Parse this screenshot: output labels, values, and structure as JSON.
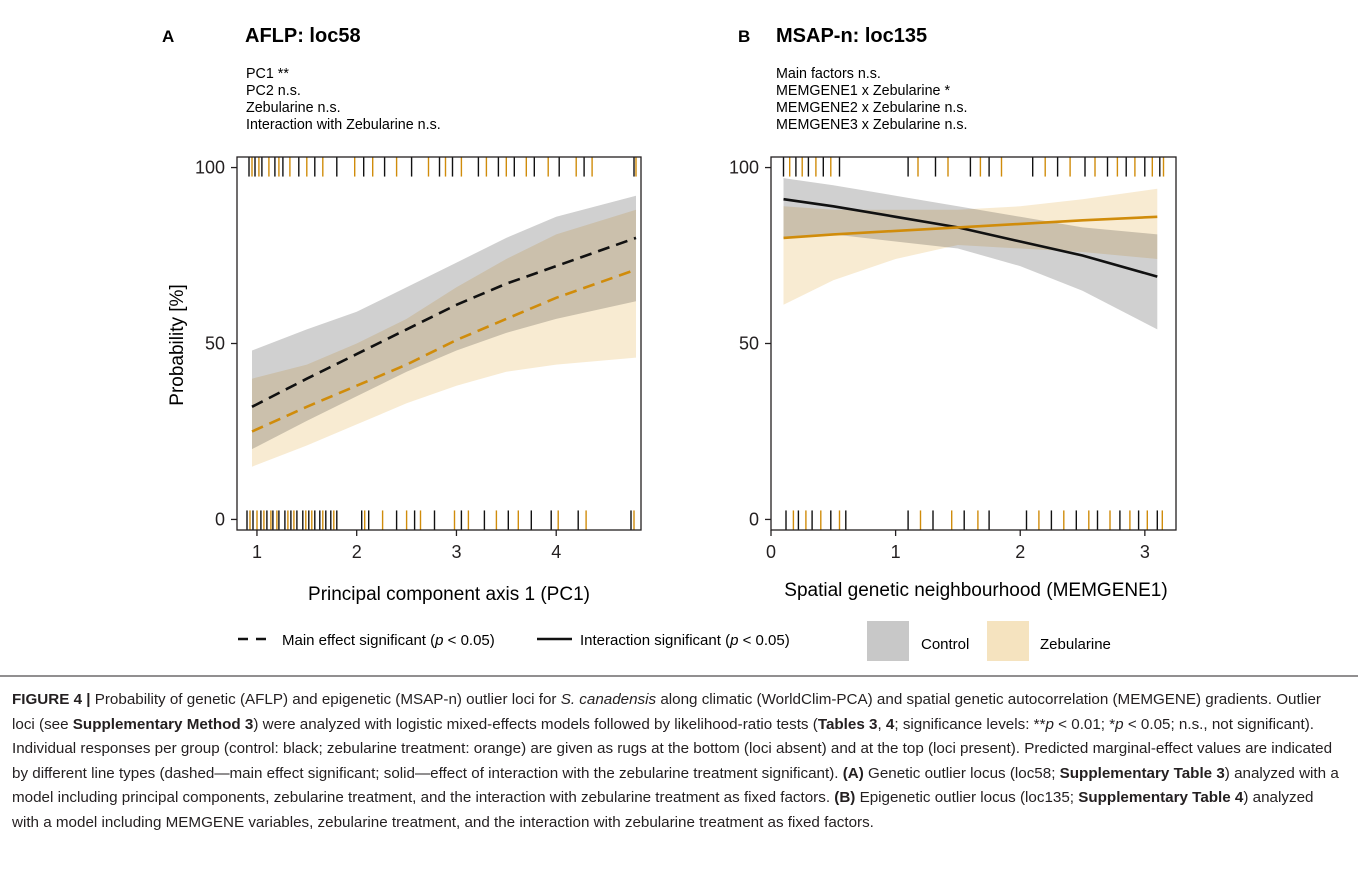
{
  "figure": {
    "caption": {
      "label": "FIGURE 4 |",
      "s1": " Probability of genetic (AFLP) and epigenetic (MSAP-n) outlier loci for ",
      "species": "S. canadensis",
      "s2": " along climatic (WorldClim-PCA) and spatial genetic autocorrelation (MEMGENE) gradients. Outlier loci (see ",
      "b_supp_method": "Supplementary Method 3",
      "s3": ") were analyzed with logistic mixed-effects models followed by likelihood-ratio tests (",
      "b_tables": "Tables 3",
      "s4": ", ",
      "b_four": "4",
      "s5": "; significance levels: **",
      "p1": "p",
      "s6": " < 0.01; *",
      "p2": "p",
      "s7": " < 0.05; n.s., not significant). Individual responses per group (control: black; zebularine treatment: orange) are given as rugs at the bottom (loci absent) and at the top (loci present). Predicted marginal-effect values are indicated by different line types (dashed—main effect significant; solid—effect of interaction with the zebularine treatment significant). ",
      "b_a": "(A)",
      "s8": " Genetic outlier locus (loc58; ",
      "b_supp_t3": "Supplementary Table 3",
      "s9": ") analyzed with a model including principal components, zebularine treatment, and the interaction with zebularine treatment as fixed factors. ",
      "b_b": "(B)",
      "s10": " Epigenetic outlier locus (loc135; ",
      "b_supp_t4": "Supplementary Table 4",
      "s11": ") analyzed with a model including MEMGENE variables, zebularine treatment, and the interaction with zebularine treatment as fixed factors."
    },
    "legend": {
      "dashed_label": "Main effect significant (",
      "dashed_p": "p",
      "dashed_end": " < 0.05)",
      "solid_label": "Interaction significant (",
      "solid_p": "p",
      "solid_end": " < 0.05)",
      "control": "Control",
      "zebularine": "Zebularine"
    }
  },
  "colors": {
    "control_line": "#111111",
    "zebularine_line": "#d08c0b",
    "control_band": "#c8c8c8",
    "zebularine_band": "#f5e3bf",
    "frame": "#231f20"
  },
  "chart_data": [
    {
      "panel": "A",
      "type": "line",
      "title": "AFLP: loc58",
      "annotations": [
        "PC1 **",
        "PC2 n.s.",
        "Zebularine n.s.",
        "Interaction with Zebularine n.s."
      ],
      "xlabel": "Principal component axis 1 (PC1)",
      "ylabel": "Probability [%]",
      "xlim": [
        0.8,
        4.85
      ],
      "ylim": [
        -3,
        103
      ],
      "xticks": [
        1,
        2,
        3,
        4
      ],
      "yticks": [
        0,
        50,
        100
      ],
      "line_style": "dashed",
      "x": [
        0.95,
        1.5,
        2,
        2.5,
        3,
        3.5,
        4,
        4.8
      ],
      "series": [
        {
          "name": "Control",
          "values": [
            32,
            40,
            47,
            54,
            61,
            67,
            72,
            80
          ],
          "lower": [
            20,
            28,
            35,
            42,
            48,
            53,
            57,
            62
          ],
          "upper": [
            48,
            54,
            59,
            66,
            73,
            80,
            86,
            92
          ]
        },
        {
          "name": "Zebularine",
          "values": [
            25,
            32,
            38,
            44,
            51,
            57,
            63,
            71
          ],
          "lower": [
            15,
            21,
            27,
            33,
            38,
            42,
            44,
            46
          ],
          "upper": [
            40,
            44,
            50,
            57,
            66,
            74,
            81,
            88
          ]
        }
      ],
      "rugs": {
        "top": [
          {
            "group": "Control",
            "x": [
              0.92,
              0.98,
              1.05,
              1.18,
              1.26,
              1.42,
              1.58,
              1.8,
              2.07,
              2.28,
              2.55,
              2.83,
              2.96,
              3.22,
              3.42,
              3.58,
              3.78,
              4.03,
              4.28,
              4.78
            ]
          },
          {
            "group": "Zebularine",
            "x": [
              0.95,
              1.02,
              1.12,
              1.22,
              1.33,
              1.5,
              1.66,
              1.98,
              2.16,
              2.4,
              2.72,
              2.89,
              3.05,
              3.3,
              3.5,
              3.7,
              3.92,
              4.2,
              4.36,
              4.8
            ]
          }
        ],
        "bottom": [
          {
            "group": "Control",
            "x": [
              0.9,
              0.96,
              1.04,
              1.1,
              1.16,
              1.22,
              1.28,
              1.34,
              1.4,
              1.46,
              1.52,
              1.58,
              1.63,
              1.69,
              1.74,
              1.8,
              2.05,
              2.12,
              2.4,
              2.58,
              2.78,
              3.05,
              3.28,
              3.52,
              3.75,
              3.95,
              4.22,
              4.75
            ]
          },
          {
            "group": "Zebularine",
            "x": [
              0.93,
              1.0,
              1.07,
              1.14,
              1.2,
              1.31,
              1.37,
              1.49,
              1.55,
              1.66,
              1.77,
              2.08,
              2.26,
              2.5,
              2.64,
              2.98,
              3.12,
              3.4,
              3.62,
              4.02,
              4.3,
              4.78
            ]
          }
        ]
      }
    },
    {
      "panel": "B",
      "type": "line",
      "title": "MSAP-n: loc135",
      "annotations": [
        "Main factors n.s.",
        "MEMGENE1 x Zebularine *",
        "MEMGENE2 x Zebularine n.s.",
        "MEMGENE3 x Zebularine n.s."
      ],
      "xlabel": "Spatial genetic neighbourhood (MEMGENE1)",
      "ylabel": "",
      "xlim": [
        0,
        3.25
      ],
      "ylim": [
        -3,
        103
      ],
      "xticks": [
        0,
        1,
        2,
        3
      ],
      "yticks": [
        0,
        50,
        100
      ],
      "line_style": "solid",
      "x": [
        0.1,
        0.5,
        1,
        1.5,
        2,
        2.5,
        3.1
      ],
      "series": [
        {
          "name": "Control",
          "values": [
            91,
            89,
            86,
            83,
            79,
            75,
            69
          ],
          "lower": [
            80,
            81,
            79,
            77,
            72,
            65,
            54
          ],
          "upper": [
            97,
            95,
            92,
            89,
            86,
            83,
            81
          ]
        },
        {
          "name": "Zebularine",
          "values": [
            80,
            81,
            82,
            83,
            84,
            85,
            86
          ],
          "lower": [
            61,
            68,
            74,
            78,
            77,
            76,
            74
          ],
          "upper": [
            89,
            88,
            88,
            88,
            89,
            91,
            94
          ]
        }
      ],
      "rugs": {
        "top": [
          {
            "group": "Control",
            "x": [
              0.1,
              0.2,
              0.3,
              0.42,
              0.55,
              1.1,
              1.32,
              1.6,
              1.75,
              2.1,
              2.3,
              2.52,
              2.7,
              2.85,
              3.0,
              3.12
            ]
          },
          {
            "group": "Zebularine",
            "x": [
              0.15,
              0.25,
              0.36,
              0.48,
              1.18,
              1.42,
              1.68,
              1.85,
              2.2,
              2.4,
              2.6,
              2.78,
              2.92,
              3.06,
              3.15
            ]
          }
        ],
        "bottom": [
          {
            "group": "Control",
            "x": [
              0.12,
              0.22,
              0.33,
              0.48,
              0.6,
              1.1,
              1.3,
              1.55,
              1.75,
              2.05,
              2.25,
              2.45,
              2.62,
              2.8,
              2.95,
              3.1
            ]
          },
          {
            "group": "Zebularine",
            "x": [
              0.18,
              0.28,
              0.4,
              0.55,
              1.2,
              1.45,
              1.66,
              2.15,
              2.35,
              2.55,
              2.72,
              2.88,
              3.02,
              3.14
            ]
          }
        ]
      }
    }
  ]
}
